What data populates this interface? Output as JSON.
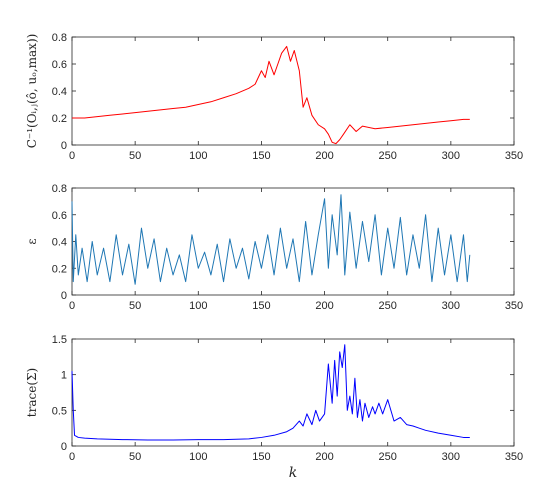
{
  "chart_data": [
    {
      "type": "line",
      "ylabel": "C⁻¹(Oᵢ,ⱼ(ô, uₒ,max))",
      "xlim": [
        0,
        350
      ],
      "ylim": [
        0,
        0.8
      ],
      "xticks": [
        "0",
        "50",
        "100",
        "150",
        "200",
        "250",
        "300",
        "350"
      ],
      "yticks": [
        "0",
        "0.2",
        "0.4",
        "0.6",
        "0.8"
      ],
      "grid": false,
      "color": "#ff0000",
      "series": [
        {
          "x": [
            0,
            10,
            20,
            30,
            40,
            50,
            60,
            70,
            80,
            90,
            100,
            110,
            120,
            130,
            140,
            145,
            150,
            153,
            156,
            160,
            163,
            166,
            170,
            173,
            176,
            180,
            183,
            186,
            190,
            195,
            200,
            203,
            206,
            209,
            212,
            215,
            220,
            225,
            230,
            240,
            250,
            260,
            270,
            280,
            290,
            300,
            310,
            315
          ],
          "y": [
            0.2,
            0.2,
            0.21,
            0.22,
            0.23,
            0.24,
            0.25,
            0.26,
            0.27,
            0.28,
            0.3,
            0.32,
            0.35,
            0.38,
            0.42,
            0.45,
            0.55,
            0.5,
            0.62,
            0.52,
            0.6,
            0.68,
            0.73,
            0.62,
            0.7,
            0.55,
            0.28,
            0.35,
            0.22,
            0.15,
            0.12,
            0.08,
            0.02,
            0.01,
            0.04,
            0.08,
            0.15,
            0.1,
            0.14,
            0.12,
            0.13,
            0.14,
            0.15,
            0.16,
            0.17,
            0.18,
            0.19,
            0.19
          ]
        }
      ]
    },
    {
      "type": "line",
      "ylabel": "ε",
      "xlim": [
        0,
        350
      ],
      "ylim": [
        0,
        0.8
      ],
      "xticks": [
        "0",
        "50",
        "100",
        "150",
        "200",
        "250",
        "300",
        "350"
      ],
      "yticks": [
        "0",
        "0.2",
        "0.4",
        "0.6",
        "0.8"
      ],
      "grid": false,
      "color": "#1f77b4",
      "series": [
        {
          "x": [
            0,
            1,
            3,
            5,
            8,
            12,
            16,
            20,
            25,
            30,
            35,
            40,
            45,
            50,
            55,
            60,
            65,
            70,
            75,
            80,
            85,
            90,
            95,
            100,
            105,
            110,
            115,
            120,
            125,
            130,
            135,
            140,
            145,
            150,
            155,
            160,
            165,
            170,
            175,
            180,
            185,
            190,
            195,
            200,
            203,
            206,
            210,
            213,
            216,
            220,
            225,
            230,
            235,
            240,
            245,
            250,
            255,
            260,
            265,
            270,
            275,
            280,
            285,
            290,
            295,
            300,
            305,
            310,
            313,
            315
          ],
          "y": [
            0.7,
            0.1,
            0.45,
            0.15,
            0.35,
            0.1,
            0.4,
            0.15,
            0.35,
            0.1,
            0.45,
            0.15,
            0.38,
            0.08,
            0.5,
            0.2,
            0.42,
            0.1,
            0.35,
            0.15,
            0.3,
            0.1,
            0.45,
            0.2,
            0.32,
            0.15,
            0.38,
            0.1,
            0.42,
            0.2,
            0.35,
            0.12,
            0.4,
            0.2,
            0.45,
            0.15,
            0.5,
            0.2,
            0.42,
            0.1,
            0.55,
            0.15,
            0.45,
            0.72,
            0.2,
            0.6,
            0.3,
            0.75,
            0.15,
            0.62,
            0.2,
            0.55,
            0.25,
            0.6,
            0.15,
            0.5,
            0.2,
            0.58,
            0.15,
            0.45,
            0.2,
            0.6,
            0.1,
            0.5,
            0.15,
            0.45,
            0.1,
            0.45,
            0.1,
            0.3
          ]
        }
      ]
    },
    {
      "type": "line",
      "ylabel": "trace(Σ)",
      "xlabel": "k",
      "xlim": [
        0,
        350
      ],
      "ylim": [
        0,
        1.5
      ],
      "xticks": [
        "0",
        "50",
        "100",
        "150",
        "200",
        "250",
        "300",
        "350"
      ],
      "yticks": [
        "0",
        "0.5",
        "1",
        "1.5"
      ],
      "grid": false,
      "color": "#0000ff",
      "series": [
        {
          "x": [
            0,
            1,
            2,
            5,
            10,
            20,
            40,
            60,
            80,
            100,
            120,
            140,
            150,
            160,
            170,
            175,
            180,
            183,
            186,
            190,
            193,
            196,
            200,
            203,
            206,
            208,
            210,
            212,
            214,
            216,
            218,
            220,
            222,
            224,
            226,
            228,
            230,
            232,
            235,
            238,
            240,
            243,
            246,
            250,
            255,
            260,
            265,
            270,
            275,
            280,
            290,
            300,
            310,
            315
          ],
          "y": [
            1.05,
            0.5,
            0.15,
            0.12,
            0.11,
            0.1,
            0.09,
            0.085,
            0.085,
            0.09,
            0.09,
            0.1,
            0.12,
            0.15,
            0.2,
            0.25,
            0.35,
            0.28,
            0.45,
            0.3,
            0.5,
            0.35,
            0.45,
            1.15,
            0.6,
            1.2,
            0.7,
            1.32,
            1.1,
            1.42,
            0.5,
            0.7,
            0.45,
            0.95,
            0.4,
            0.65,
            0.35,
            0.6,
            0.4,
            0.55,
            0.45,
            0.6,
            0.45,
            0.65,
            0.35,
            0.4,
            0.3,
            0.28,
            0.25,
            0.22,
            0.18,
            0.15,
            0.12,
            0.12
          ]
        }
      ]
    }
  ]
}
